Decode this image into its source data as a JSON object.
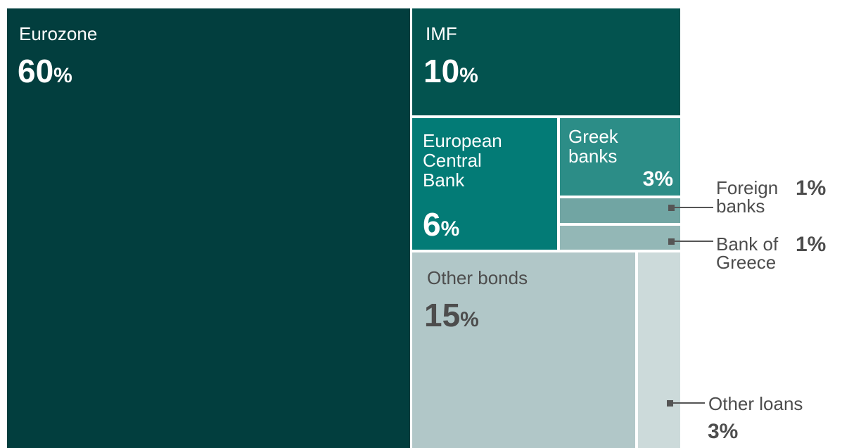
{
  "chart_data": {
    "type": "treemap",
    "items": [
      {
        "label": "Eurozone",
        "value": 60,
        "value_text": "60",
        "unit": "%",
        "color": "#023e3e"
      },
      {
        "label": "IMF",
        "value": 10,
        "value_text": "10",
        "unit": "%",
        "color": "#03534f"
      },
      {
        "label": "European Central Bank",
        "label_lines": [
          "European",
          "Central",
          "Bank"
        ],
        "value": 6,
        "value_text": "6",
        "unit": "%",
        "color": "#037b76"
      },
      {
        "label": "Greek banks",
        "label_lines": [
          "Greek",
          "banks"
        ],
        "value": 3,
        "value_text": "3%",
        "color": "#2c8d87"
      },
      {
        "label": "Foreign banks",
        "label_lines": [
          "Foreign",
          "banks"
        ],
        "value": 1,
        "value_text": "1%",
        "color": "#71a5a3"
      },
      {
        "label": "Bank of Greece",
        "label_lines": [
          "Bank of",
          "Greece"
        ],
        "value": 1,
        "value_text": "1%",
        "color": "#93b7b6"
      },
      {
        "label": "Other bonds",
        "value": 15,
        "value_text": "15",
        "unit": "%",
        "color": "#b1c7c8"
      },
      {
        "label": "Other loans",
        "value": 3,
        "value_text": "3%",
        "color": "#ccdada"
      }
    ]
  }
}
